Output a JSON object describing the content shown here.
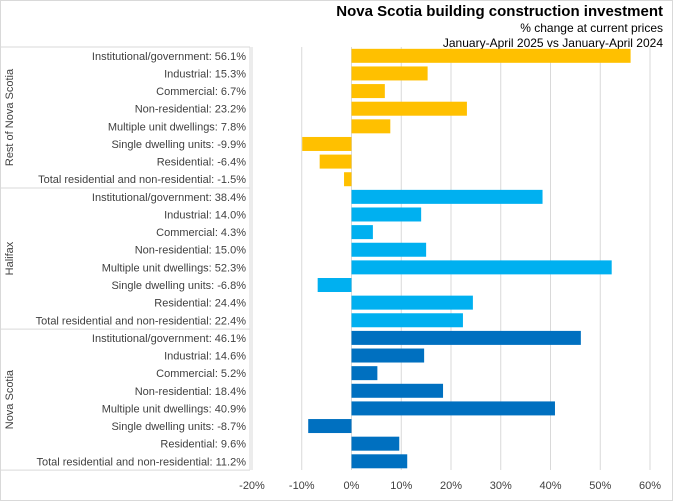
{
  "chart_data": {
    "type": "bar",
    "orientation": "horizontal",
    "title": "Nova Scotia building construction investment",
    "subtitle_lines": [
      "% change at current prices",
      "January-April 2025 vs January-April 2024"
    ],
    "xlabel": "",
    "ylabel": "",
    "xlim": [
      -20,
      60
    ],
    "x_ticks": [
      -20,
      -10,
      0,
      10,
      20,
      30,
      40,
      50,
      60
    ],
    "x_tick_labels": [
      "-20%",
      "-10%",
      "0%",
      "10%",
      "20%",
      "30%",
      "40%",
      "50%",
      "60%"
    ],
    "grid": "vertical",
    "legend": "none",
    "groups": [
      {
        "name": "Rest of Nova Scotia",
        "color": "#FFC000",
        "categories": [
          "Institutional/government: 56.1%",
          "Industrial: 15.3%",
          "Commercial: 6.7%",
          "Non-residential: 23.2%",
          "Multiple unit dwellings: 7.8%",
          "Single dwelling units: -9.9%",
          "Residential: -6.4%",
          "Total residential and non-residential: -1.5%"
        ],
        "values": [
          56.1,
          15.3,
          6.7,
          23.2,
          7.8,
          -9.9,
          -6.4,
          -1.5
        ]
      },
      {
        "name": "Halifax",
        "color": "#00B0F0",
        "categories": [
          "Institutional/government: 38.4%",
          "Industrial: 14.0%",
          "Commercial: 4.3%",
          "Non-residential: 15.0%",
          "Multiple unit dwellings: 52.3%",
          "Single dwelling units: -6.8%",
          "Residential: 24.4%",
          "Total residential and non-residential: 22.4%"
        ],
        "values": [
          38.4,
          14.0,
          4.3,
          15.0,
          52.3,
          -6.8,
          24.4,
          22.4
        ]
      },
      {
        "name": "Nova Scotia",
        "color": "#0070C0",
        "categories": [
          "Institutional/government: 46.1%",
          "Industrial: 14.6%",
          "Commercial: 5.2%",
          "Non-residential: 18.4%",
          "Multiple unit dwellings: 40.9%",
          "Single dwelling units: -8.7%",
          "Residential: 9.6%",
          "Total residential and non-residential: 11.2%"
        ],
        "values": [
          46.1,
          14.6,
          5.2,
          18.4,
          40.9,
          -8.7,
          9.6,
          11.2
        ]
      }
    ],
    "colors": {
      "grid": "#d9d9d9",
      "axis_text": "#404040",
      "title": "#000000"
    }
  }
}
